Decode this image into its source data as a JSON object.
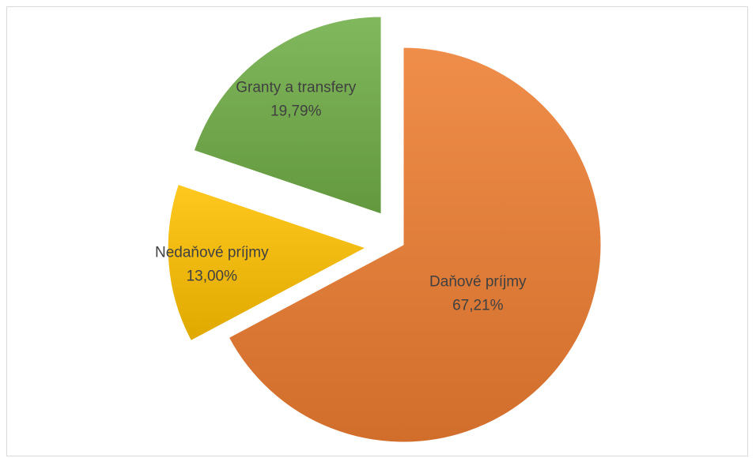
{
  "chart_data": {
    "type": "pie",
    "title": "",
    "exploded": true,
    "start_angle_deg": 0,
    "direction": "clockwise",
    "slices": [
      {
        "name": "Daňové príjmy",
        "value": 67.21,
        "label_value": "67,21%",
        "color": "#ED7D31"
      },
      {
        "name": "Nedaňové príjmy",
        "value": 13.0,
        "label_value": "13,00%",
        "color": "#FFC000"
      },
      {
        "name": "Granty a transfery",
        "value": 19.79,
        "label_value": "19,79%",
        "color": "#70AD47"
      }
    ]
  }
}
